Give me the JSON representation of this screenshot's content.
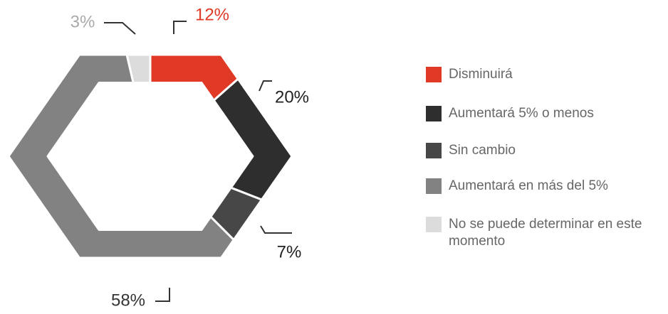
{
  "chart_data": {
    "type": "donut",
    "categories": [
      "Disminuirá",
      "Aumentará 5% o menos",
      "Sin cambio",
      "Aumentará en más del 5%",
      "No se puede determinar en este momento"
    ],
    "values": [
      12,
      20,
      7,
      58,
      3
    ],
    "value_labels": [
      "12%",
      "20%",
      "7%",
      "58%",
      "3%"
    ],
    "colors": [
      "#e03a26",
      "#2e2e2e",
      "#474747",
      "#828282",
      "#dcdcdc"
    ]
  }
}
